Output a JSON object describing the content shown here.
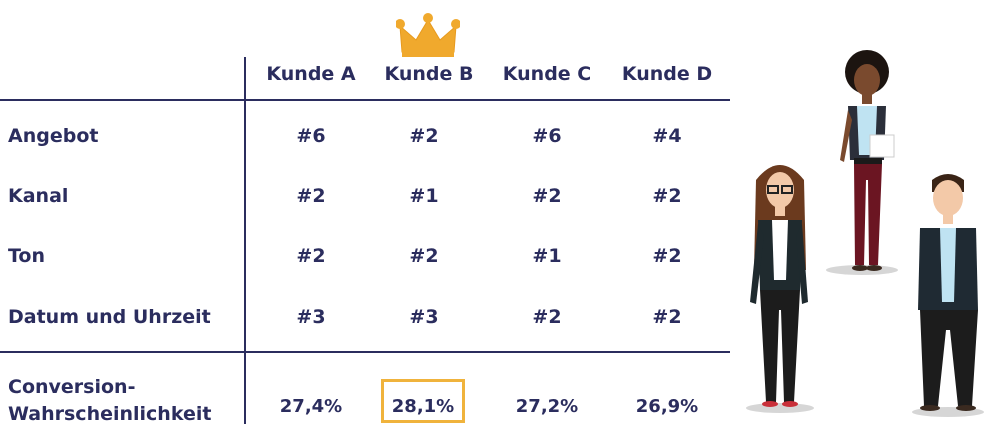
{
  "columns": [
    "Kunde A",
    "Kunde B",
    "Kunde C",
    "Kunde D"
  ],
  "rows": [
    {
      "label": "Angebot",
      "values": [
        "#6",
        "#2",
        "#6",
        "#4"
      ]
    },
    {
      "label": "Kanal",
      "values": [
        "#2",
        "#1",
        "#2",
        "#2"
      ]
    },
    {
      "label": "Ton",
      "values": [
        "#2",
        "#2",
        "#1",
        "#2"
      ]
    },
    {
      "label": "Datum und Uhrzeit",
      "values": [
        "#3",
        "#3",
        "#2",
        "#2"
      ]
    }
  ],
  "conversion": {
    "label_line1": "Conversion-",
    "label_line2": "Wahrscheinlichkeit",
    "values": [
      "27,4%",
      "28,1%",
      "27,2%",
      "26,9%"
    ]
  },
  "icons": {
    "winner": "crown-icon",
    "illustration": "three-business-people"
  },
  "colors": {
    "text": "#2b2d5e",
    "accent": "#f0b33c"
  }
}
